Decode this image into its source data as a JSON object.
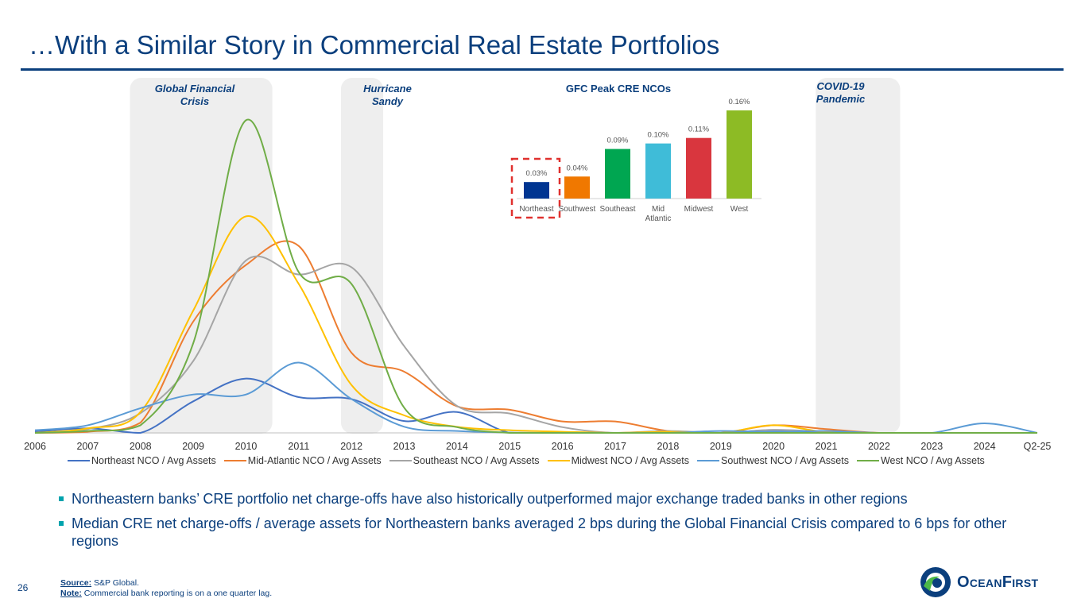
{
  "title": "…With a Similar Story in Commercial Real Estate Portfolios",
  "events": [
    {
      "label": "Global Financial Crisis",
      "lines": [
        "Global Financial",
        "Crisis"
      ]
    },
    {
      "label": "Hurricane Sandy",
      "lines": [
        "Hurricane",
        "Sandy"
      ]
    },
    {
      "label": "COVID-19 Pandemic",
      "lines": [
        "COVID-19",
        "Pandemic"
      ]
    }
  ],
  "bullets": [
    "Northeastern banks’ CRE portfolio net charge-offs have also historically outperformed major exchange traded banks in other regions",
    "Median CRE net charge-offs / average assets for Northeastern banks averaged 2 bps during the Global Financial Crisis compared to 6 bps for other regions"
  ],
  "footnote": {
    "source_label": "Source:",
    "source_text": "S&P Global.",
    "note_label": "Note:",
    "note_text": "Commercial bank reporting is on a one quarter lag."
  },
  "page_number": "26",
  "logo": {
    "text": "OceanFirst",
    "icon": "oceanfirst-logo-icon"
  },
  "colors": {
    "title": "#0b3f7d",
    "event_shading": "#eeeeee",
    "highlight_box": "#e0312e"
  },
  "chart_data": [
    {
      "type": "line",
      "title": "",
      "xlabel": "",
      "ylabel": "",
      "x": [
        "2006",
        "2007",
        "2008",
        "2009",
        "2010",
        "2011",
        "2012",
        "2013",
        "2014",
        "2015",
        "2016",
        "2017",
        "2018",
        "2019",
        "2020",
        "2021",
        "2022",
        "2023",
        "2024",
        "Q2-25"
      ],
      "grid": false,
      "legend": "bottom",
      "series": [
        {
          "name": "Northeast NCO / Avg Assets",
          "color": "#4472c4",
          "values": [
            0.3,
            1.2,
            0.0,
            8.3,
            14.3,
            9.4,
            8.9,
            3.1,
            5.5,
            0,
            0,
            0,
            0,
            0,
            0.7,
            0,
            0,
            0,
            0,
            0
          ]
        },
        {
          "name": "Mid-Atlantic NCO / Avg Assets",
          "color": "#ed7d31",
          "values": [
            0,
            0.3,
            2.7,
            29.3,
            44.2,
            49.2,
            21.1,
            16.1,
            7.0,
            6.1,
            3.0,
            3.0,
            0.5,
            0,
            2.0,
            1.0,
            0,
            0,
            0,
            0
          ]
        },
        {
          "name": "Southeast NCO / Avg Assets",
          "color": "#a5a5a5",
          "values": [
            0,
            1.0,
            5.2,
            18.9,
            45.4,
            41.7,
            43.6,
            22.8,
            7.1,
            5.1,
            1.5,
            0,
            0.5,
            0,
            0.8,
            0.3,
            0,
            0,
            0,
            0
          ]
        },
        {
          "name": "Midwest NCO / Avg Assets",
          "color": "#ffc000",
          "values": [
            0,
            1.2,
            5.5,
            32.2,
            57.0,
            39.2,
            12.6,
            4.6,
            1.6,
            0.7,
            0.3,
            0,
            0.3,
            0,
            2.0,
            0.2,
            0,
            0,
            0,
            0
          ]
        },
        {
          "name": "Southwest NCO / Avg Assets",
          "color": "#5b9bd5",
          "values": [
            0.7,
            2.0,
            6.5,
            10.1,
            10.1,
            18.5,
            8.9,
            1.6,
            0.5,
            0.1,
            0,
            0,
            0,
            0.5,
            0.3,
            0.5,
            0,
            0,
            2.5,
            0
          ]
        },
        {
          "name": "West NCO / Avg Assets",
          "color": "#70ad47",
          "values": [
            0,
            0.5,
            2.0,
            23.6,
            82.3,
            42.3,
            39.2,
            6.6,
            1.5,
            0,
            0,
            0,
            0,
            0,
            0,
            0,
            0,
            0,
            0,
            0
          ]
        }
      ],
      "shaded_periods": [
        [
          "2007.8",
          "2010.5"
        ],
        [
          "2011.8",
          "2012.6"
        ],
        [
          "2020.8",
          "2022.4"
        ]
      ]
    },
    {
      "type": "bar",
      "title": "GFC Peak CRE NCOs",
      "categories": [
        "Northeast",
        "Southwest",
        "Southeast",
        "Mid Atlantic",
        "Midwest",
        "West"
      ],
      "category_lines": [
        [
          "Northeast"
        ],
        [
          "Southwest"
        ],
        [
          "Southeast"
        ],
        [
          "Mid",
          "Atlantic"
        ],
        [
          "Midwest"
        ],
        [
          "West"
        ]
      ],
      "values": [
        0.03,
        0.04,
        0.09,
        0.1,
        0.11,
        0.16
      ],
      "data_labels": [
        "0.03%",
        "0.04%",
        "0.09%",
        "0.10%",
        "0.11%",
        "0.16%"
      ],
      "colors": [
        "#003591",
        "#f07800",
        "#00a651",
        "#3fbcd8",
        "#d9363e",
        "#8dbb25"
      ],
      "highlighted_category": "Northeast",
      "ylim": [
        0,
        0.16
      ],
      "grid": false
    }
  ]
}
